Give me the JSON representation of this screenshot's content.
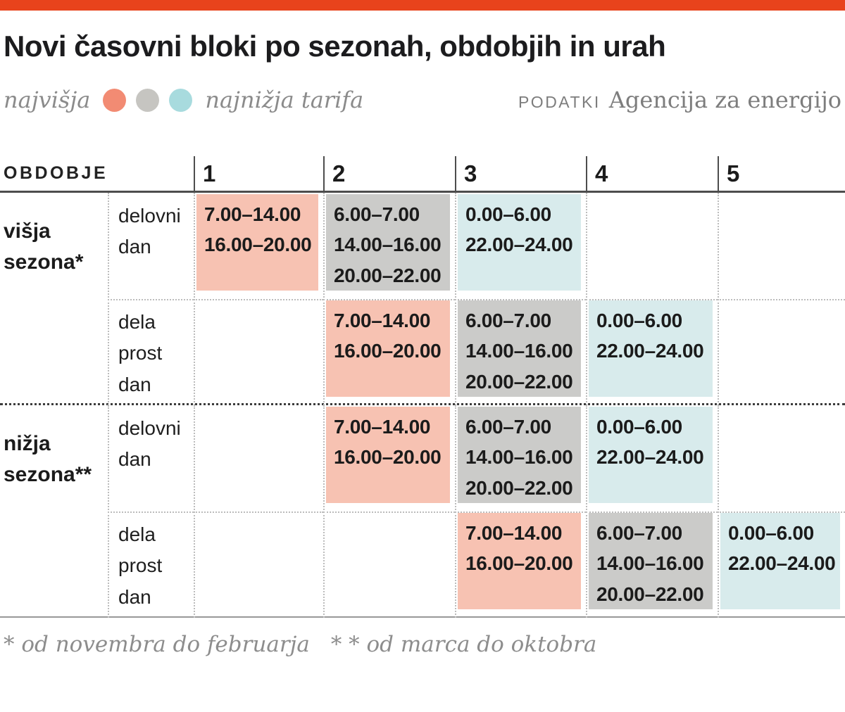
{
  "colors": {
    "accent_bar": "#e8431c",
    "dot_high": "#f28b73",
    "dot_mid": "#c6c5c1",
    "dot_low": "#a8dbde",
    "cell_high": "#f7c2b2",
    "cell_mid": "#cbcbc9",
    "cell_low": "#d8ebec"
  },
  "title": "Novi časovni bloki po sezonah, obdobjih in urah",
  "legend": {
    "left": "najvišja",
    "right": "najnižja tarifa"
  },
  "source": {
    "label": "PODATKI",
    "value": "Agencija za energijo"
  },
  "footnotes": {
    "high_season": "* od novembra do februarja",
    "low_season": "* * od marca do oktobra"
  },
  "chart_data": {
    "type": "table",
    "title": "Novi časovni bloki po sezonah, obdobjih in urah",
    "corner_header": "OBDOBJE",
    "block_headers": [
      "1",
      "2",
      "3",
      "4",
      "5"
    ],
    "tariff_legend": {
      "high": "najvišja",
      "low": "najnižja tarifa"
    },
    "rows": [
      {
        "season": "višja sezona*",
        "day_type": "delovni dan",
        "cells": [
          {
            "block": 1,
            "tariff": "high",
            "times": [
              "7.00–14.00",
              "16.00–20.00"
            ]
          },
          {
            "block": 2,
            "tariff": "mid",
            "times": [
              "6.00–7.00",
              "14.00–16.00",
              "20.00–22.00"
            ]
          },
          {
            "block": 3,
            "tariff": "low",
            "times": [
              "0.00–6.00",
              "22.00–24.00"
            ]
          }
        ]
      },
      {
        "season": "",
        "day_type": "dela prost dan",
        "cells": [
          {
            "block": 2,
            "tariff": "high",
            "times": [
              "7.00–14.00",
              "16.00–20.00"
            ]
          },
          {
            "block": 3,
            "tariff": "mid",
            "times": [
              "6.00–7.00",
              "14.00–16.00",
              "20.00–22.00"
            ]
          },
          {
            "block": 4,
            "tariff": "low",
            "times": [
              "0.00–6.00",
              "22.00–24.00"
            ]
          }
        ]
      },
      {
        "season": "nižja sezona**",
        "day_type": "delovni dan",
        "cells": [
          {
            "block": 2,
            "tariff": "high",
            "times": [
              "7.00–14.00",
              "16.00–20.00"
            ]
          },
          {
            "block": 3,
            "tariff": "mid",
            "times": [
              "6.00–7.00",
              "14.00–16.00",
              "20.00–22.00"
            ]
          },
          {
            "block": 4,
            "tariff": "low",
            "times": [
              "0.00–6.00",
              "22.00–24.00"
            ]
          }
        ]
      },
      {
        "season": "",
        "day_type": "dela prost dan",
        "cells": [
          {
            "block": 3,
            "tariff": "high",
            "times": [
              "7.00–14.00",
              "16.00–20.00"
            ]
          },
          {
            "block": 4,
            "tariff": "mid",
            "times": [
              "6.00–7.00",
              "14.00–16.00",
              "20.00–22.00"
            ]
          },
          {
            "block": 5,
            "tariff": "low",
            "times": [
              "0.00–6.00",
              "22.00–24.00"
            ]
          }
        ]
      }
    ]
  }
}
